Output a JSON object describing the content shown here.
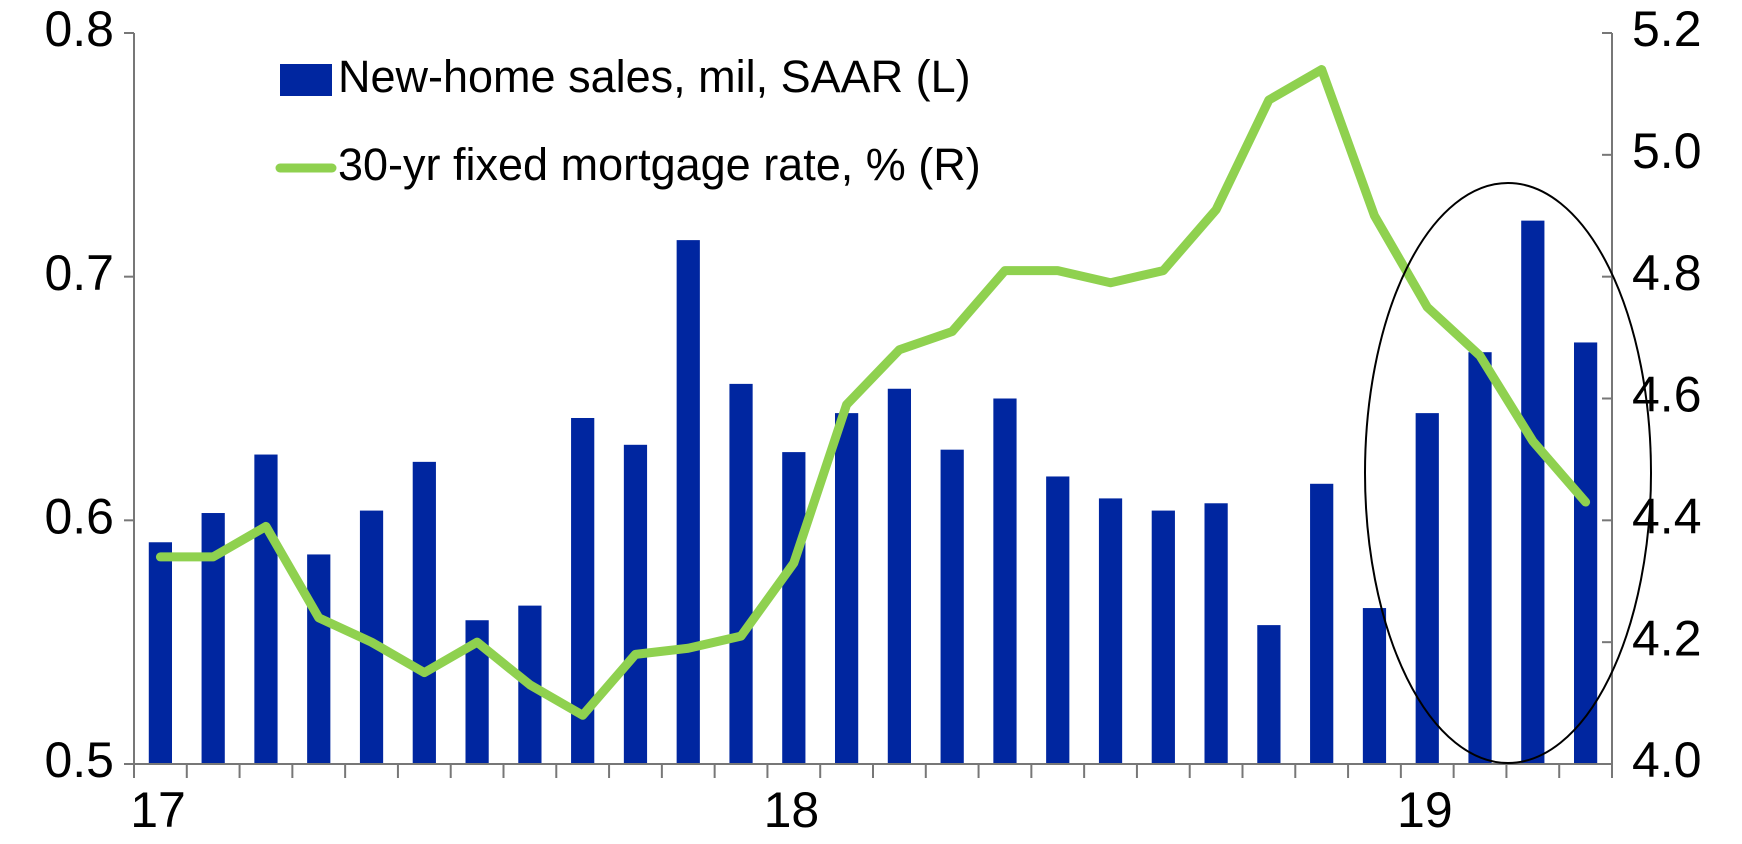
{
  "chart_data": {
    "type": "bar_line",
    "categories": [
      "17",
      null,
      null,
      null,
      null,
      null,
      null,
      null,
      null,
      null,
      null,
      null,
      "18",
      null,
      null,
      null,
      null,
      null,
      null,
      null,
      null,
      null,
      null,
      null,
      "19",
      null,
      null,
      null
    ],
    "series": [
      {
        "name": "New-home sales, mil, SAAR (L)",
        "type": "bar",
        "color": "#0026a0",
        "axis": "y",
        "values": [
          0.591,
          0.603,
          0.627,
          0.586,
          0.604,
          0.624,
          0.559,
          0.565,
          0.642,
          0.631,
          0.715,
          0.656,
          0.628,
          0.644,
          0.654,
          0.629,
          0.65,
          0.618,
          0.609,
          0.604,
          0.607,
          0.557,
          0.615,
          0.564,
          0.644,
          0.669,
          0.723,
          0.673
        ]
      },
      {
        "name": "30-yr fixed mortgage rate, % (R)",
        "type": "line",
        "color": "#8fd14f",
        "axis": "y2",
        "values": [
          4.34,
          4.34,
          4.39,
          4.24,
          4.2,
          4.15,
          4.2,
          4.13,
          4.08,
          4.18,
          4.19,
          4.21,
          4.33,
          4.59,
          4.68,
          4.71,
          4.81,
          4.81,
          4.79,
          4.81,
          4.91,
          5.09,
          5.14,
          4.9,
          4.75,
          4.67,
          4.53,
          4.43
        ]
      }
    ],
    "ylim": [
      0.5,
      0.8
    ],
    "yticks": [
      0.5,
      0.6,
      0.7,
      0.8
    ],
    "y2lim": [
      4.0,
      5.2
    ],
    "y2ticks": [
      {
        "value": 4.0,
        "label": "4.0"
      },
      4.2,
      4.4,
      4.6,
      4.8,
      {
        "value": 5.0,
        "label": "5.0"
      },
      5.2
    ],
    "legend": "upper left"
  }
}
